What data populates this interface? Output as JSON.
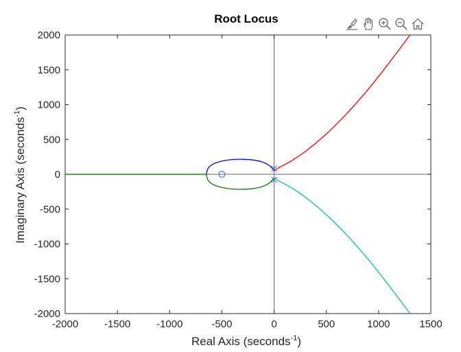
{
  "toolbar": {
    "icons": [
      "brush-icon",
      "pan-hand-icon",
      "zoom-in-icon",
      "zoom-out-icon",
      "home-icon"
    ]
  },
  "chart_data": {
    "type": "line",
    "title": "Root Locus",
    "xlabel": "Real  Axis  (seconds",
    "xlabel_sup": "-1",
    "xlabel_end": ")",
    "ylabel": "Imaginary  Axis  (seconds",
    "ylabel_sup": "-1",
    "ylabel_end": ")",
    "xlim": [
      -2000,
      1500
    ],
    "ylim": [
      -2000,
      2000
    ],
    "xticks": [
      -2000,
      -1500,
      -1000,
      -500,
      0,
      500,
      1000,
      1500
    ],
    "yticks": [
      -2000,
      -1500,
      -1000,
      -500,
      0,
      500,
      1000,
      1500,
      2000
    ],
    "xtick_labels": [
      "-2000",
      "-1500",
      "-1000",
      "-500",
      "0",
      "500",
      "1000",
      "1500"
    ],
    "ytick_labels": [
      "-2000",
      "-1500",
      "-1000",
      "-500",
      "0",
      "500",
      "1000",
      "1500",
      "2000"
    ],
    "grid": false,
    "series": [
      {
        "color": "#0000ff",
        "x": [
          0,
          -20,
          -60,
          -120,
          -200,
          -300,
          -400,
          -500,
          -580,
          -630,
          -650
        ],
        "y": [
          50,
          90,
          140,
          180,
          205,
          215,
          212,
          190,
          150,
          90,
          0
        ]
      },
      {
        "color": "#008000",
        "x": [
          0,
          -20,
          -60,
          -120,
          -200,
          -300,
          -400,
          -500,
          -580,
          -630,
          -650
        ],
        "y": [
          -50,
          -90,
          -140,
          -180,
          -205,
          -215,
          -212,
          -190,
          -150,
          -90,
          0
        ]
      },
      {
        "color": "#008000",
        "x": [
          -650,
          -1000,
          -1500,
          -2000
        ],
        "y": [
          0,
          0,
          0,
          0
        ]
      },
      {
        "color": "#ff0000",
        "x": [
          0,
          50,
          150,
          300,
          500,
          700,
          900,
          1100,
          1300
        ],
        "y": [
          50,
          100,
          180,
          330,
          580,
          880,
          1220,
          1600,
          2000
        ]
      },
      {
        "color": "#00bfbf",
        "x": [
          0,
          50,
          150,
          300,
          500,
          700,
          900,
          1100,
          1300
        ],
        "y": [
          -50,
          -100,
          -180,
          -330,
          -580,
          -880,
          -1220,
          -1600,
          -2000
        ]
      }
    ],
    "poles": [
      {
        "x": 0,
        "y": 80
      },
      {
        "x": 0,
        "y": -80
      }
    ],
    "zeros": [
      {
        "x": -500,
        "y": 0
      }
    ],
    "marker_color": "#3b7dd8"
  }
}
